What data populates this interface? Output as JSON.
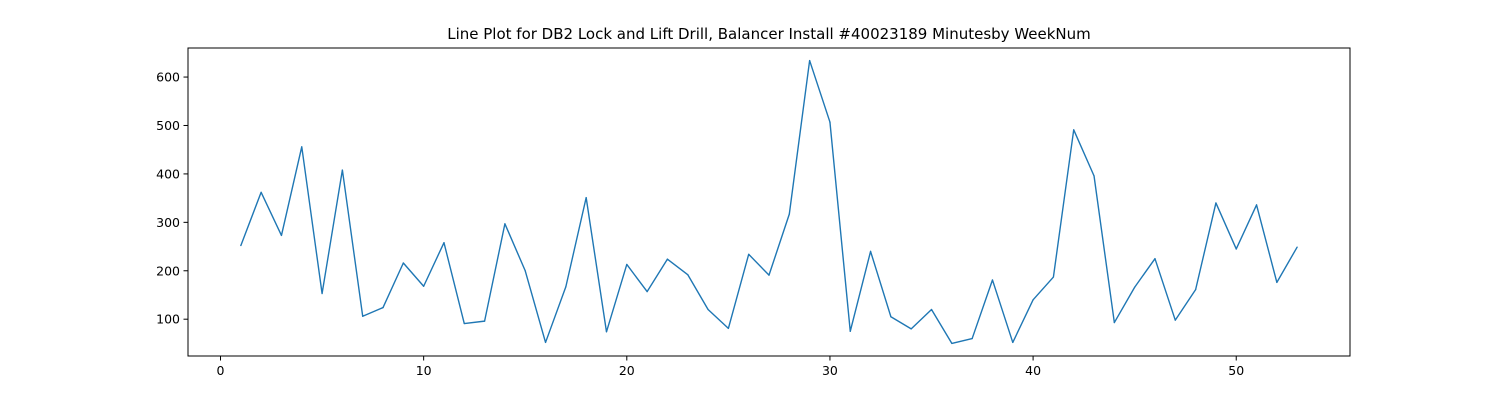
{
  "chart_data": {
    "type": "line",
    "title": "Line Plot for DB2 Lock and Lift Drill, Balancer Install #40023189 Minutesby WeekNum",
    "xlabel": "",
    "ylabel": "",
    "xlim": [
      -1.6,
      55.6
    ],
    "ylim": [
      24,
      660
    ],
    "x_ticks": [
      0,
      10,
      20,
      30,
      40,
      50
    ],
    "y_ticks": [
      100,
      200,
      300,
      400,
      500,
      600
    ],
    "grid": false,
    "line_color": "#1f77b4",
    "series": [
      {
        "x": [
          1,
          2,
          3,
          4,
          5,
          6,
          7,
          8,
          9,
          10,
          11,
          12,
          13,
          14,
          15,
          16,
          17,
          18,
          19,
          20,
          21,
          22,
          23,
          24,
          25,
          26,
          27,
          28,
          29,
          30,
          31,
          32,
          33,
          34,
          35,
          36,
          37,
          38,
          39,
          40,
          41,
          42,
          43,
          44,
          45,
          46,
          47,
          48,
          49,
          50,
          51,
          52,
          53
        ],
        "values": [
          252,
          362,
          273,
          456,
          153,
          408,
          106,
          124,
          216,
          168,
          258,
          91,
          96,
          297,
          200,
          52,
          167,
          351,
          74,
          213,
          157,
          224,
          192,
          120,
          81,
          234,
          191,
          317,
          634,
          507,
          75,
          240,
          105,
          80,
          120,
          50,
          60,
          181,
          52,
          140,
          187,
          491,
          396,
          93,
          166,
          225,
          98,
          161,
          340,
          245,
          336,
          176,
          249
        ]
      }
    ]
  }
}
